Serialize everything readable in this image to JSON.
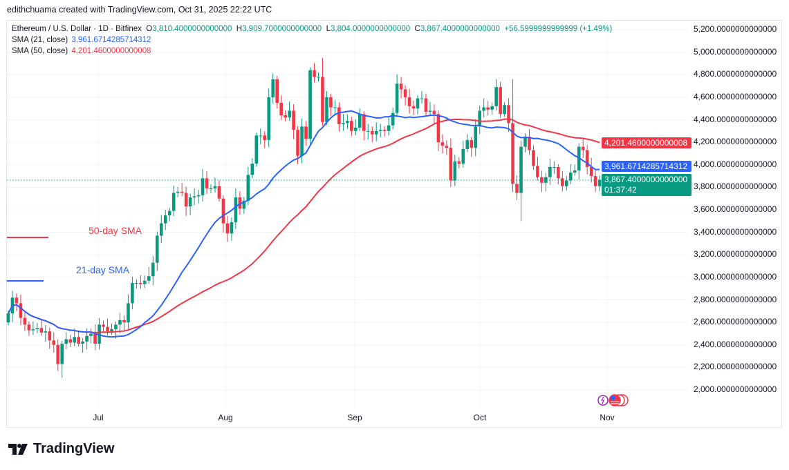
{
  "credit": "edithchuama created with TradingView.com, Oct 31, 2025 22:22 UTC",
  "legend": {
    "symbol": "Ethereum / U.S. Dollar · 1D · Bitfinex",
    "open_label": "O",
    "open": "3,810.4000000000000",
    "high_label": "H",
    "high": "3,909.7000000000000",
    "low_label": "L",
    "low": "3,804.0000000000000",
    "close_label": "C",
    "close": "3,867.4000000000000",
    "change": "+56.5999999999999 (+1.49%)",
    "sma21_label": "SMA (21, close)",
    "sma21_value": "3,961.6714285714312",
    "sma50_label": "SMA (50, close)",
    "sma50_value": "4,201.4600000000008"
  },
  "price_axis": [
    "5,200.0000000000000",
    "5,000.0000000000000",
    "4,800.0000000000000",
    "4,600.0000000000000",
    "4,400.0000000000000",
    "4,200.0000000000000",
    "4,000.0000000000000",
    "3,800.0000000000000",
    "3,600.0000000000000",
    "3,400.0000000000000",
    "3,200.0000000000000",
    "3,000.0000000000000",
    "2,800.0000000000000",
    "2,600.0000000000000",
    "2,400.0000000000000",
    "2,200.0000000000000",
    "2,000.0000000000000"
  ],
  "tags": {
    "sma50": "4,201.4600000000008",
    "sma21": "3,961.6714285714312",
    "last_price": "3,867.4000000000000",
    "countdown": "01:37:42"
  },
  "time_axis": [
    "Jul",
    "Aug",
    "Sep",
    "Oct",
    "Nov"
  ],
  "annotations": {
    "sma50": "50-day SMA",
    "sma21": "21-day SMA"
  },
  "brand": "TradingView",
  "colors": {
    "up": "#089981",
    "down": "#f23645",
    "sma21": "#2962ff",
    "sma50": "#f23645"
  },
  "chart_data": {
    "type": "candlestick",
    "first_date": "Jun 9",
    "last_date": "Oct 31",
    "ylim": [
      2000,
      5200
    ],
    "closes": [
      2680,
      2820,
      2770,
      2640,
      2580,
      2530,
      2540,
      2550,
      2510,
      2520,
      2440,
      2400,
      2230,
      2410,
      2450,
      2420,
      2470,
      2410,
      2430,
      2480,
      2500,
      2410,
      2580,
      2560,
      2520,
      2540,
      2580,
      2620,
      2600,
      2770,
      2950,
      2950,
      2940,
      2970,
      3010,
      3130,
      3370,
      3480,
      3550,
      3590,
      3750,
      3760,
      3750,
      3630,
      3710,
      3720,
      3730,
      3880,
      3790,
      3790,
      3810,
      3700,
      3480,
      3390,
      3490,
      3710,
      3610,
      3680,
      3910,
      4010,
      4260,
      4260,
      4220,
      4600,
      4760,
      4550,
      4440,
      4420,
      4480,
      4310,
      4080,
      4340,
      4230,
      4840,
      4780,
      4780,
      4380,
      4600,
      4510,
      4510,
      4360,
      4370,
      4390,
      4300,
      4330,
      4450,
      4300,
      4300,
      4270,
      4300,
      4310,
      4300,
      4350,
      4460,
      4720,
      4670,
      4600,
      4520,
      4500,
      4590,
      4590,
      4470,
      4480,
      4450,
      4200,
      4170,
      4150,
      3860,
      4030,
      4010,
      4140,
      4220,
      4150,
      4340,
      4480,
      4510,
      4490,
      4520,
      4690,
      4450,
      4530,
      4370,
      3830,
      3750,
      4160,
      4250,
      4130,
      3990,
      3890,
      3840,
      3890,
      3980,
      3980,
      3880,
      3810,
      3860,
      3930,
      3950,
      4160,
      4130,
      3980,
      3900,
      3810,
      3867.4
    ],
    "extremes": [
      {
        "index": 13,
        "low": 2110
      },
      {
        "index": 76,
        "high": 4950
      },
      {
        "index": 124,
        "low": 3500
      },
      {
        "index": 122,
        "high": 4760
      }
    ]
  }
}
